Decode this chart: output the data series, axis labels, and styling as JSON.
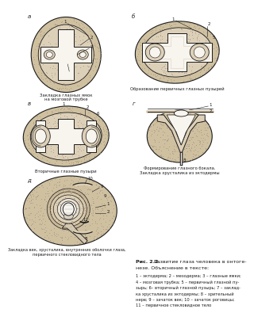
{
  "title": "Рис. 2.2.",
  "title_rest": " Развитие глаза человека в онтоге-",
  "title_line2": "незе. Объяснение в тексте:",
  "legend_lines": [
    "1 – эктодерма; 2 – мезодерма; 3 – глазные ямки;",
    "4 – мозговая трубка; 5 – первичный глазной пу-",
    "зырь; 6– вторичный глазной пузырь; 7 – заклад-",
    "ка хрусталика из эктодермы; 8 – зрительный",
    "нерв; 9 – зачаток век; 10 – зачаток роговицы;",
    "11 – первичное стекловидное тело"
  ],
  "caption_a": "Закладка глазных ямок\nна мозговой трубке",
  "caption_b": "Образование первичных глазных пузырей",
  "caption_c": "Вторичные глазные пузыри",
  "caption_d": "Формирование глазного бокала.\nЗакладка хрусталика из эктодермы",
  "caption_e": "Закладка век, хрусталика, внутренних оболочки глаза,\nпервичного стекловидного тела",
  "bg_outer": "#cfc0a0",
  "bg_inner": "#ddd0b8",
  "bg_white": "#f8f4ee",
  "lc": "#1a1a1a",
  "text_color": "#1a1a1a"
}
